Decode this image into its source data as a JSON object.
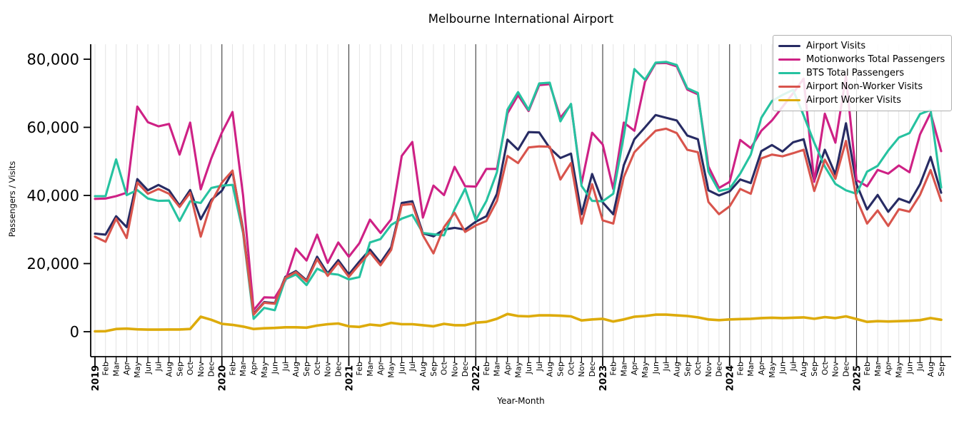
{
  "title": "Melbourne International Airport",
  "x_axis_label": "Year-Month",
  "y_axis_label": "Passengers / Visits",
  "chart_data": {
    "type": "line",
    "x_axis": {
      "start": "2019-Jan",
      "end": "2025-Sep",
      "n_points": 81,
      "month_labels": [
        "Jan",
        "Feb",
        "Mar",
        "Apr",
        "May",
        "Jun",
        "Jul",
        "Aug",
        "Sep",
        "Oct",
        "Nov",
        "Dec"
      ],
      "year_labels": [
        "2019",
        "2020",
        "2021",
        "2022",
        "2023",
        "2024",
        "2025"
      ],
      "grid": "vertical line at every month, dark separator at each January"
    },
    "y_axis": {
      "ticks": [
        0,
        20000,
        40000,
        60000,
        80000
      ],
      "tick_labels": [
        "0",
        "20,000",
        "40,000",
        "60,000",
        "80,000"
      ],
      "ylim": [
        -7300,
        84800
      ]
    },
    "legend_position": "upper right",
    "series": [
      {
        "name": "Airport Visits",
        "color": "#272b63",
        "values": [
          28800,
          28500,
          33900,
          30700,
          44800,
          41500,
          43100,
          41500,
          37000,
          41600,
          33000,
          38700,
          41400,
          47000,
          30000,
          5200,
          8700,
          8400,
          16100,
          17800,
          15100,
          22000,
          17100,
          21000,
          16800,
          20600,
          24100,
          20300,
          24800,
          37800,
          38300,
          28900,
          28000,
          30000,
          30500,
          30000,
          32300,
          33900,
          40500,
          56400,
          53400,
          58600,
          58500,
          53900,
          51000,
          52300,
          34500,
          46300,
          38000,
          34500,
          48900,
          56500,
          60000,
          63600,
          62800,
          62000,
          57600,
          56500,
          41500,
          40000,
          41200,
          44700,
          43650,
          53000,
          54800,
          52900,
          55600,
          56500,
          44300,
          53400,
          46200,
          61200,
          43300,
          35900,
          40150,
          35200,
          39050,
          37900,
          43270,
          51300,
          40800
        ]
      },
      {
        "name": "Motionworks Total Passengers",
        "color": "#ce2185",
        "values": [
          39000,
          39100,
          39800,
          40800,
          66100,
          61500,
          60300,
          61000,
          52000,
          61400,
          41800,
          50900,
          58500,
          64500,
          40000,
          6300,
          10100,
          10000,
          15000,
          24400,
          20900,
          28500,
          20200,
          26200,
          22000,
          26000,
          32900,
          29000,
          33000,
          51600,
          55700,
          33500,
          42900,
          40100,
          48400,
          42700,
          42600,
          47800,
          47800,
          64100,
          69450,
          64800,
          72400,
          72700,
          62800,
          66700,
          43500,
          58400,
          55000,
          41900,
          61400,
          59000,
          73400,
          78800,
          78900,
          77900,
          71100,
          69700,
          48500,
          42200,
          44000,
          56300,
          53900,
          59000,
          62000,
          66000,
          70000,
          74300,
          44000,
          64000,
          55500,
          75000,
          44500,
          42700,
          47500,
          46400,
          48800,
          46800,
          57900,
          64200,
          53000
        ]
      },
      {
        "name": "BTS Total Passengers",
        "color": "#26c2a0",
        "values": [
          39800,
          39800,
          50600,
          40100,
          41600,
          39100,
          38400,
          38500,
          32500,
          38300,
          37800,
          42200,
          42900,
          43100,
          29000,
          3800,
          7000,
          6300,
          15400,
          16800,
          13700,
          18500,
          17100,
          16750,
          15350,
          16050,
          26200,
          27200,
          31350,
          33200,
          34300,
          29000,
          28600,
          28300,
          35900,
          42000,
          32800,
          38350,
          46800,
          65200,
          70350,
          65100,
          72900,
          73100,
          61750,
          66900,
          42800,
          38400,
          38300,
          40500,
          57500,
          77100,
          74000,
          79000,
          79200,
          78300,
          71500,
          70100,
          47000,
          41300,
          42000,
          46400,
          52000,
          62800,
          67700,
          69500,
          71000,
          63500,
          55500,
          48500,
          43400,
          41500,
          40500,
          47000,
          48700,
          53200,
          57000,
          58300,
          63900,
          65100,
          42300
        ]
      },
      {
        "name": "Airport Non-Worker Visits",
        "color": "#d8544c",
        "values": [
          27900,
          26400,
          33200,
          27500,
          43800,
          40500,
          41900,
          40500,
          36600,
          40800,
          27900,
          38000,
          43800,
          47300,
          29500,
          5000,
          8500,
          8200,
          15800,
          17500,
          14800,
          21300,
          16400,
          20300,
          16100,
          19800,
          23300,
          19500,
          24000,
          37200,
          37500,
          28300,
          23000,
          30700,
          34900,
          29300,
          31200,
          32500,
          38400,
          51600,
          49500,
          54100,
          54400,
          54300,
          44700,
          49500,
          31700,
          43300,
          32700,
          31750,
          45400,
          52700,
          55900,
          59000,
          59600,
          58300,
          53400,
          52700,
          38100,
          34500,
          36800,
          41900,
          40500,
          50900,
          52000,
          51500,
          52400,
          53400,
          41300,
          50500,
          44900,
          56000,
          39000,
          31750,
          35600,
          31050,
          35950,
          35250,
          40150,
          47460,
          38400
        ]
      },
      {
        "name": "Airport Worker Visits",
        "color": "#ddab0b",
        "values": [
          100,
          150,
          800,
          900,
          700,
          600,
          600,
          650,
          650,
          800,
          4400,
          3500,
          2300,
          2000,
          1500,
          800,
          1000,
          1100,
          1300,
          1300,
          1200,
          1800,
          2200,
          2400,
          1600,
          1400,
          2100,
          1800,
          2600,
          2200,
          2200,
          1900,
          1600,
          2300,
          1900,
          1900,
          2650,
          2900,
          3800,
          5200,
          4600,
          4500,
          4800,
          4800,
          4700,
          4500,
          3300,
          3600,
          3800,
          3000,
          3600,
          4400,
          4600,
          5000,
          5000,
          4800,
          4600,
          4200,
          3600,
          3400,
          3600,
          3700,
          3800,
          4000,
          4100,
          4000,
          4100,
          4200,
          3800,
          4300,
          4000,
          4500,
          3700,
          2900,
          3100,
          3000,
          3100,
          3200,
          3400,
          4000,
          3500
        ]
      }
    ]
  }
}
